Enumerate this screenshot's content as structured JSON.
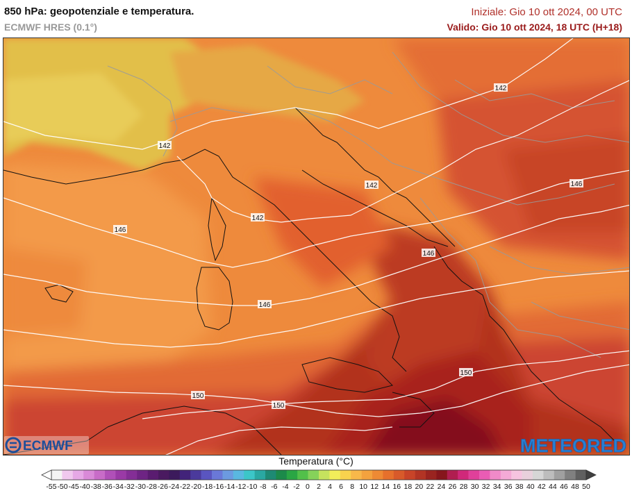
{
  "header": {
    "title": "850 hPa: geopotenziale e temperatura.",
    "model": "ECMWF HRES (0.1°)",
    "initial": "Iniziale: Gio 10 ott 2024, 00 UTC",
    "valid": "Valido: Gio 10 ott 2024, 18 UTC (H+18)"
  },
  "legend": {
    "title": "Temperatura (°C)",
    "ticks": [
      "-55",
      "-50",
      "-45",
      "-40",
      "-38",
      "-36",
      "-34",
      "-32",
      "-30",
      "-28",
      "-26",
      "-24",
      "-22",
      "-20",
      "-18",
      "-16",
      "-14",
      "-12",
      "-10",
      "-8",
      "-6",
      "-4",
      "-2",
      "0",
      "2",
      "4",
      "6",
      "8",
      "10",
      "12",
      "14",
      "16",
      "18",
      "20",
      "22",
      "24",
      "26",
      "28",
      "30",
      "32",
      "34",
      "36",
      "38",
      "40",
      "42",
      "44",
      "46",
      "48",
      "50"
    ],
    "colors": [
      "#f4f4f4",
      "#f0c8ee",
      "#e6a8e6",
      "#d98ad8",
      "#c86cc8",
      "#b050b8",
      "#9a3aa6",
      "#842e96",
      "#6e2484",
      "#5a1c70",
      "#4a1a60",
      "#3c1a5c",
      "#42237a",
      "#4b3a9c",
      "#5a55c0",
      "#6a78d8",
      "#6c9ae0",
      "#5ab8e0",
      "#3cc6c8",
      "#2aa8a2",
      "#1e8a74",
      "#1c8a4a",
      "#2aa644",
      "#52c04a",
      "#86d25a",
      "#c6e25e",
      "#f2ee5a",
      "#f8d24e",
      "#f8b84a",
      "#f4a23e",
      "#ee8a34",
      "#e6702c",
      "#d85a2a",
      "#c84428",
      "#b23424",
      "#9a2420",
      "#86161c",
      "#b01e50",
      "#d0287a",
      "#e0409a",
      "#ea5cb4",
      "#f08ac8",
      "#f4aad6",
      "#f6c4e0",
      "#e8d0dc",
      "#d6d6d6",
      "#bdbdbd",
      "#a0a0a0",
      "#808080",
      "#606060"
    ]
  },
  "map": {
    "isobar_labels": [
      "142",
      "142",
      "142",
      "142",
      "146",
      "146",
      "146",
      "146",
      "150",
      "150",
      "150"
    ],
    "colors": {
      "alps_yellow": "#e2bf4a",
      "orange_light": "#f39a48",
      "orange_mid": "#ee8a3c",
      "red_orange": "#e26a34",
      "red": "#cc4430",
      "dark_red": "#a8201e",
      "maroon": "#84101e",
      "isobar": "#ffffff",
      "border": "#9a9a9a",
      "coast": "#111111"
    }
  },
  "logos": {
    "ecmwf": "ECMWF",
    "meteored": "METEORED"
  }
}
